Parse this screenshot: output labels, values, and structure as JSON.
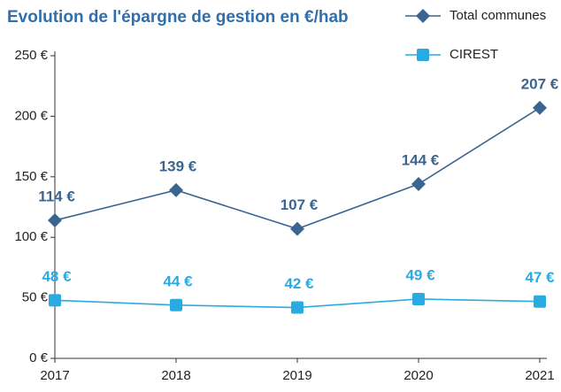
{
  "chart_data": {
    "type": "line",
    "title": "Evolution de l'épargne de gestion en €/hab",
    "categories": [
      "2017",
      "2018",
      "2019",
      "2020",
      "2021"
    ],
    "series": [
      {
        "name": "Total communes",
        "color": "#3b6591",
        "marker": "diamond",
        "values": [
          114,
          139,
          107,
          144,
          207
        ],
        "value_labels": [
          "114 €",
          "139 €",
          "107 €",
          "144 €",
          "207 €"
        ]
      },
      {
        "name": "CIREST",
        "color": "#29abe2",
        "marker": "square",
        "values": [
          48,
          44,
          42,
          49,
          47
        ],
        "value_labels": [
          "48 €",
          "44 €",
          "42 €",
          "49 €",
          "47 €"
        ]
      }
    ],
    "ylim": [
      0,
      250
    ],
    "yticks": [
      {
        "value": 0,
        "label": "0 €"
      },
      {
        "value": 50,
        "label": "50 €"
      },
      {
        "value": 100,
        "label": "100 €"
      },
      {
        "value": 150,
        "label": "150 €"
      },
      {
        "value": 200,
        "label": "200 €"
      },
      {
        "value": 250,
        "label": "250 €"
      }
    ]
  }
}
